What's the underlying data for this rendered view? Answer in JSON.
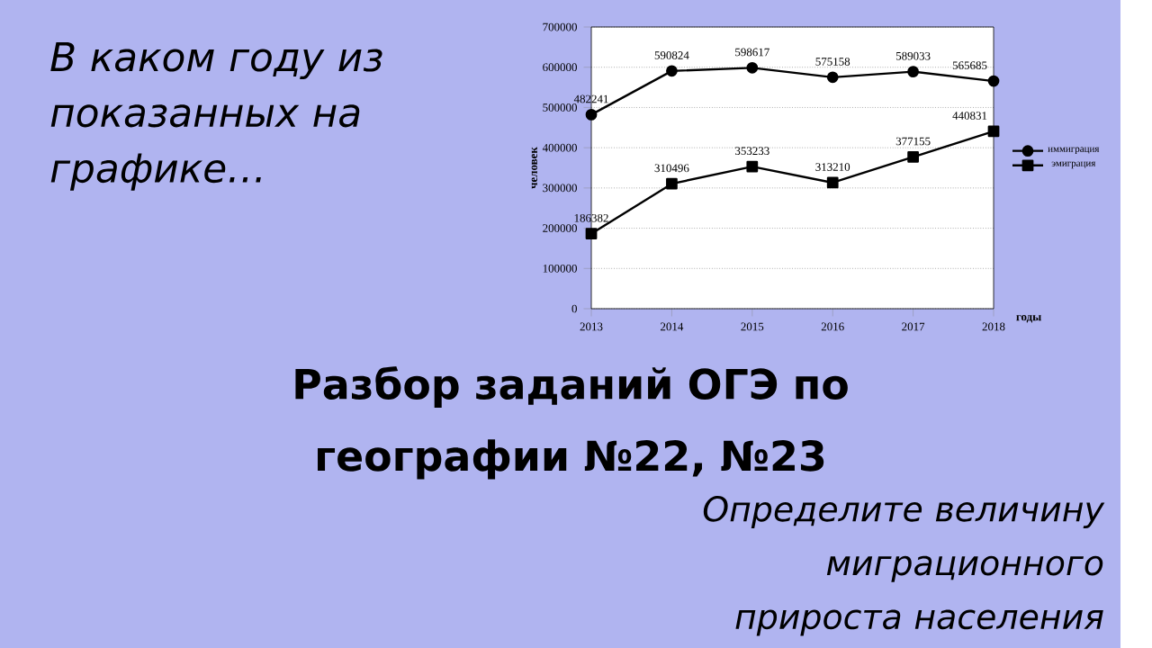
{
  "chart_data": {
    "type": "line",
    "title": "В каком году из показанных на графике…",
    "subtitle": "Разбор заданий ОГЭ по географии №22, №23",
    "annotations": [
      "Определите величину миграционного прироста населения"
    ],
    "xlabel": "годы",
    "ylabel": "человек",
    "categories": [
      "2013",
      "2014",
      "2015",
      "2016",
      "2017",
      "2018"
    ],
    "series": [
      {
        "name": "иммиграция",
        "color": "#000000",
        "marker": "circle",
        "values": [
          482241,
          590824,
          598617,
          575158,
          589033,
          565685
        ]
      },
      {
        "name": "эмиграция",
        "color": "#000000",
        "marker": "square",
        "values": [
          186382,
          310496,
          353233,
          313210,
          377155,
          440831
        ]
      }
    ],
    "ylim": [
      0,
      700000
    ],
    "yticks": [
      0,
      100000,
      200000,
      300000,
      400000,
      500000,
      600000,
      700000
    ],
    "grid": "y",
    "legend": "right",
    "data_labels": true
  }
}
